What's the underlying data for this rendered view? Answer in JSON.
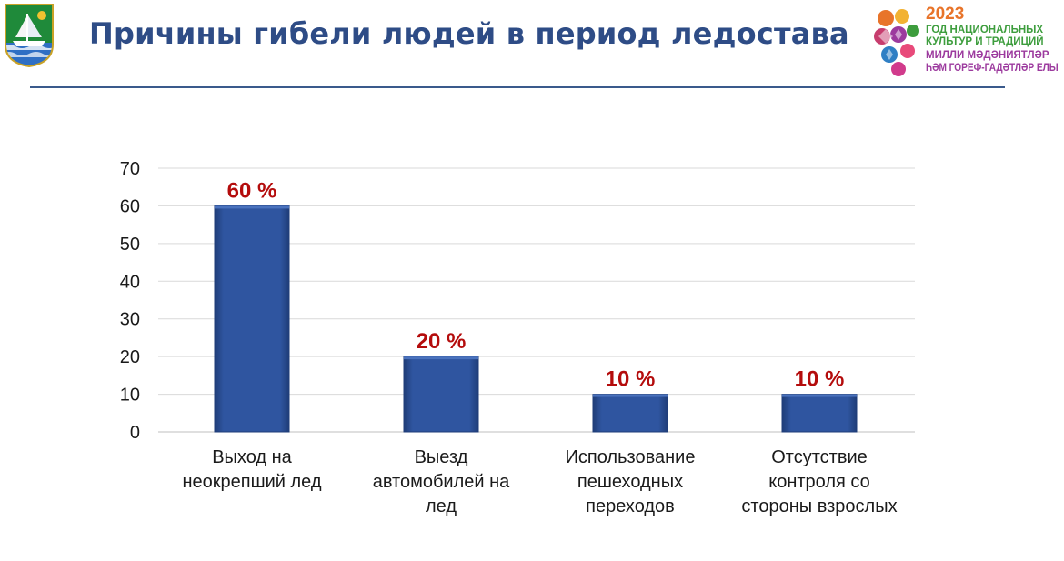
{
  "slide": {
    "title": "Причины гибели людей в период ледостава"
  },
  "event_logo": {
    "year": "2023",
    "lines": [
      "ГОД НАЦИОНАЛЬНЫХ",
      "КУЛЬТУР И ТРАДИЦИЙ",
      "МИЛЛИ МӘДӘНИЯТЛӘР",
      "ҺӘМ ГОРЕФ-ГАДӘТЛӘР ЕЛЫ"
    ]
  },
  "colors": {
    "title": "#2e4c86",
    "bar": "#2f55a0",
    "bar_dark": "#1f3d78",
    "data_label": "#b40c0c",
    "grid": "#d9d9d9"
  },
  "chart_data": {
    "type": "bar",
    "title": "",
    "xlabel": "",
    "ylabel": "",
    "ylim": [
      0,
      70
    ],
    "yticks": [
      0,
      10,
      20,
      30,
      40,
      50,
      60,
      70
    ],
    "grid": true,
    "legend": "none",
    "categories": [
      [
        "Выход на",
        "неокрепший лед"
      ],
      [
        "Выезд",
        "автомобилей на",
        "лед"
      ],
      [
        "Использование",
        "пешеходных",
        "переходов"
      ],
      [
        "Отсутствие",
        "контроля со",
        "стороны взрослых"
      ]
    ],
    "values": [
      60,
      20,
      10,
      10
    ],
    "data_labels": [
      "60 %",
      "20 %",
      "10 %",
      "10 %"
    ]
  }
}
